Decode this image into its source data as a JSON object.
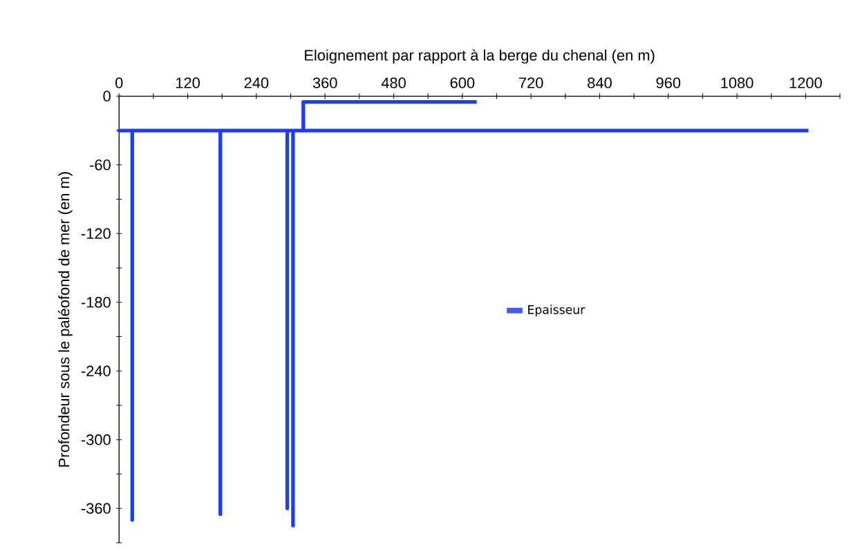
{
  "chart_data": {
    "type": "line",
    "xlabel": "Eloignement par rapport à la berge du chenal (en m)",
    "ylabel": "Profondeur sous le paléofond de mer (en m)",
    "x": [
      625,
      322,
      322,
      0,
      23,
      23,
      23,
      177,
      177,
      177,
      294,
      294,
      294,
      304,
      304,
      304,
      1205
    ],
    "series": [
      {
        "name": "Epaisseur",
        "color": "#1e3cff",
        "values": [
          -5,
          -5,
          -30,
          -30,
          -30,
          -370,
          -30,
          -30,
          -365,
          -30,
          -30,
          -360,
          -30,
          -30,
          -375,
          -30,
          -30
        ]
      }
    ],
    "xlim": [
      0,
      1260
    ],
    "ylim": [
      -390,
      0
    ],
    "xticks": [
      0,
      {
        "value": 60,
        "label": null
      },
      120,
      {
        "value": 180,
        "label": null
      },
      240,
      {
        "value": 300,
        "label": null
      },
      360,
      {
        "value": 420,
        "label": null
      },
      480,
      {
        "value": 540,
        "label": null
      },
      600,
      {
        "value": 660,
        "label": null
      },
      720,
      {
        "value": 780,
        "label": null
      },
      840,
      {
        "value": 900,
        "label": null
      },
      960,
      {
        "value": 1020,
        "label": null
      },
      1080,
      {
        "value": 1140,
        "label": null
      },
      1200,
      {
        "value": 1260,
        "label": null
      }
    ],
    "yticks": [
      0,
      {
        "value": -30,
        "label": null
      },
      -60,
      {
        "value": -90,
        "label": null
      },
      -120,
      {
        "value": -150,
        "label": null
      },
      -180,
      {
        "value": -210,
        "label": null
      },
      -240,
      {
        "value": -270,
        "label": null
      },
      -300,
      {
        "value": -330,
        "label": null
      },
      -360,
      {
        "value": -390,
        "label": null
      }
    ],
    "grid": false,
    "legend": "right",
    "marker": "none",
    "line_style": "solid"
  }
}
